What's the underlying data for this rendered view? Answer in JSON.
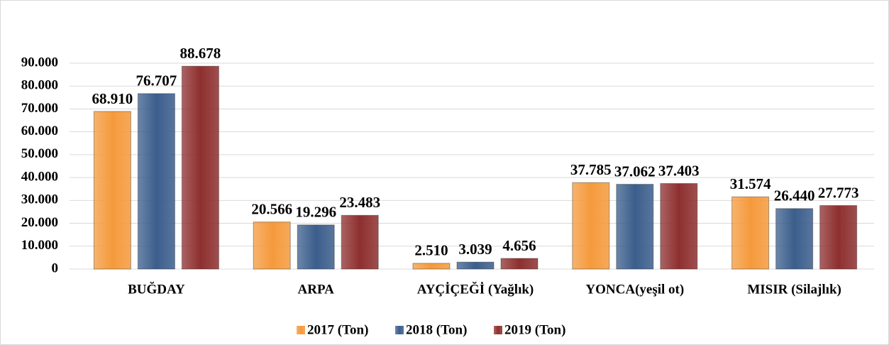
{
  "chart_data": {
    "type": "bar",
    "categories": [
      "BUĞDAY",
      "ARPA",
      "AYÇİÇEĞİ (Yağlık)",
      "YONCA(yeşil ot)",
      "MISIR (Silajlık)"
    ],
    "series": [
      {
        "name": "2017 (Ton)",
        "color": "#f59a3c",
        "values": [
          68910,
          20566,
          2510,
          37785,
          31574
        ],
        "value_labels": [
          "68.910",
          "20.566",
          "2.510",
          "37.785",
          "31.574"
        ]
      },
      {
        "name": "2018 (Ton)",
        "color": "#3b5e8c",
        "values": [
          76707,
          19296,
          3039,
          37062,
          26440
        ],
        "value_labels": [
          "76.707",
          "19.296",
          "3.039",
          "37.062",
          "26.440"
        ]
      },
      {
        "name": "2019 (Ton)",
        "color": "#8e2f2f",
        "values": [
          88678,
          23483,
          4656,
          37403,
          27773
        ],
        "value_labels": [
          "88.678",
          "23.483",
          "4.656",
          "37.403",
          "27.773"
        ]
      }
    ],
    "ylim": [
      0,
      90000
    ],
    "yticks": [
      0,
      {
        "value": 10000,
        "label": "10.000"
      },
      {
        "value": 20000,
        "label": "20.000"
      },
      {
        "value": 30000,
        "label": "30.000"
      },
      {
        "value": 40000,
        "label": "40.000"
      },
      {
        "value": 50000,
        "label": "50.000"
      },
      {
        "value": 60000,
        "label": "60.000"
      },
      {
        "value": 70000,
        "label": "70.000"
      },
      {
        "value": 80000,
        "label": "80.000"
      },
      {
        "value": 90000,
        "label": "90.000"
      }
    ],
    "grid": true,
    "legend": "bottom"
  }
}
